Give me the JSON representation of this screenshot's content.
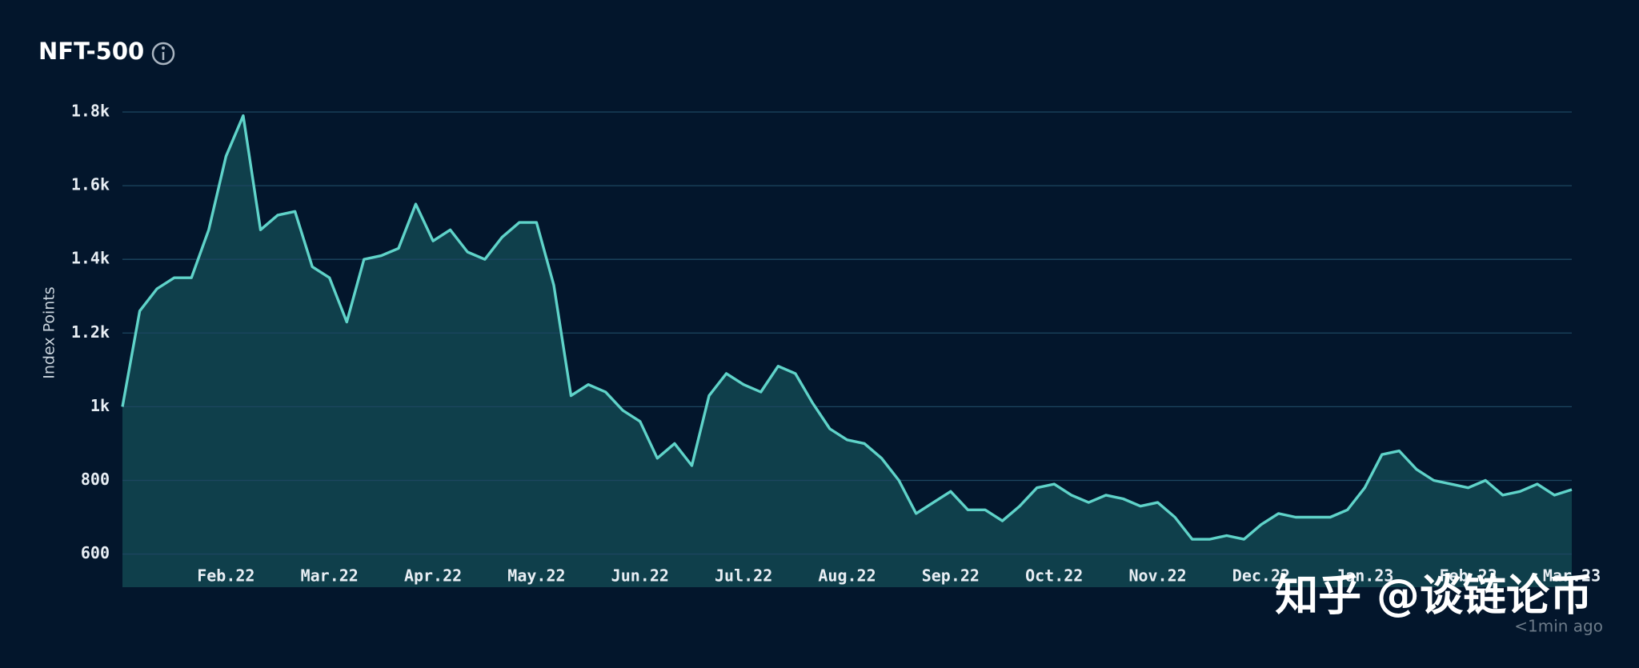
{
  "chart_data": {
    "type": "area",
    "title": "NFT-500",
    "y_label": "Index Points",
    "categories": [
      null,
      null,
      null,
      null,
      null,
      null,
      "Feb.22",
      null,
      null,
      null,
      null,
      null,
      "Mar.22",
      null,
      null,
      null,
      null,
      null,
      "Apr.22",
      null,
      null,
      null,
      null,
      null,
      "May.22",
      null,
      null,
      null,
      null,
      null,
      "Jun.22",
      null,
      null,
      null,
      null,
      null,
      "Jul.22",
      null,
      null,
      null,
      null,
      null,
      "Aug.22",
      null,
      null,
      null,
      null,
      null,
      "Sep.22",
      null,
      null,
      null,
      null,
      null,
      "Oct.22",
      null,
      null,
      null,
      null,
      null,
      "Nov.22",
      null,
      null,
      null,
      null,
      null,
      "Dec.22",
      null,
      null,
      null,
      null,
      null,
      "Jan.23",
      null,
      null,
      null,
      null,
      null,
      "Feb.23",
      null,
      null,
      null,
      null,
      null,
      "Mar.23"
    ],
    "values": [
      1000,
      1260,
      1320,
      1350,
      1350,
      1480,
      1680,
      1790,
      1480,
      1520,
      1530,
      1380,
      1350,
      1230,
      1400,
      1410,
      1430,
      1550,
      1450,
      1480,
      1420,
      1400,
      1460,
      1500,
      1500,
      1330,
      1030,
      1060,
      1040,
      990,
      960,
      860,
      900,
      840,
      1030,
      1090,
      1060,
      1040,
      1110,
      1090,
      1010,
      940,
      910,
      900,
      860,
      800,
      710,
      740,
      770,
      720,
      720,
      690,
      730,
      780,
      790,
      760,
      740,
      760,
      750,
      730,
      740,
      700,
      640,
      640,
      650,
      640,
      680,
      710,
      700,
      700,
      700,
      720,
      780,
      870,
      880,
      830,
      800,
      790,
      780,
      800,
      760,
      770,
      790,
      760,
      775
    ],
    "color": "#5fd3c9",
    "ylim": [
      510,
      1800
    ],
    "yticks": [
      600,
      800,
      {
        "value": 1000,
        "label": "1k"
      },
      {
        "value": 1200,
        "label": "1.2k"
      },
      {
        "value": 1400,
        "label": "1.4k"
      },
      {
        "value": 1600,
        "label": "1.6k"
      },
      {
        "value": 1800,
        "label": "1.8k"
      }
    ],
    "grid": true
  },
  "status": "<1min ago",
  "watermark": "知乎 @谈链论币"
}
